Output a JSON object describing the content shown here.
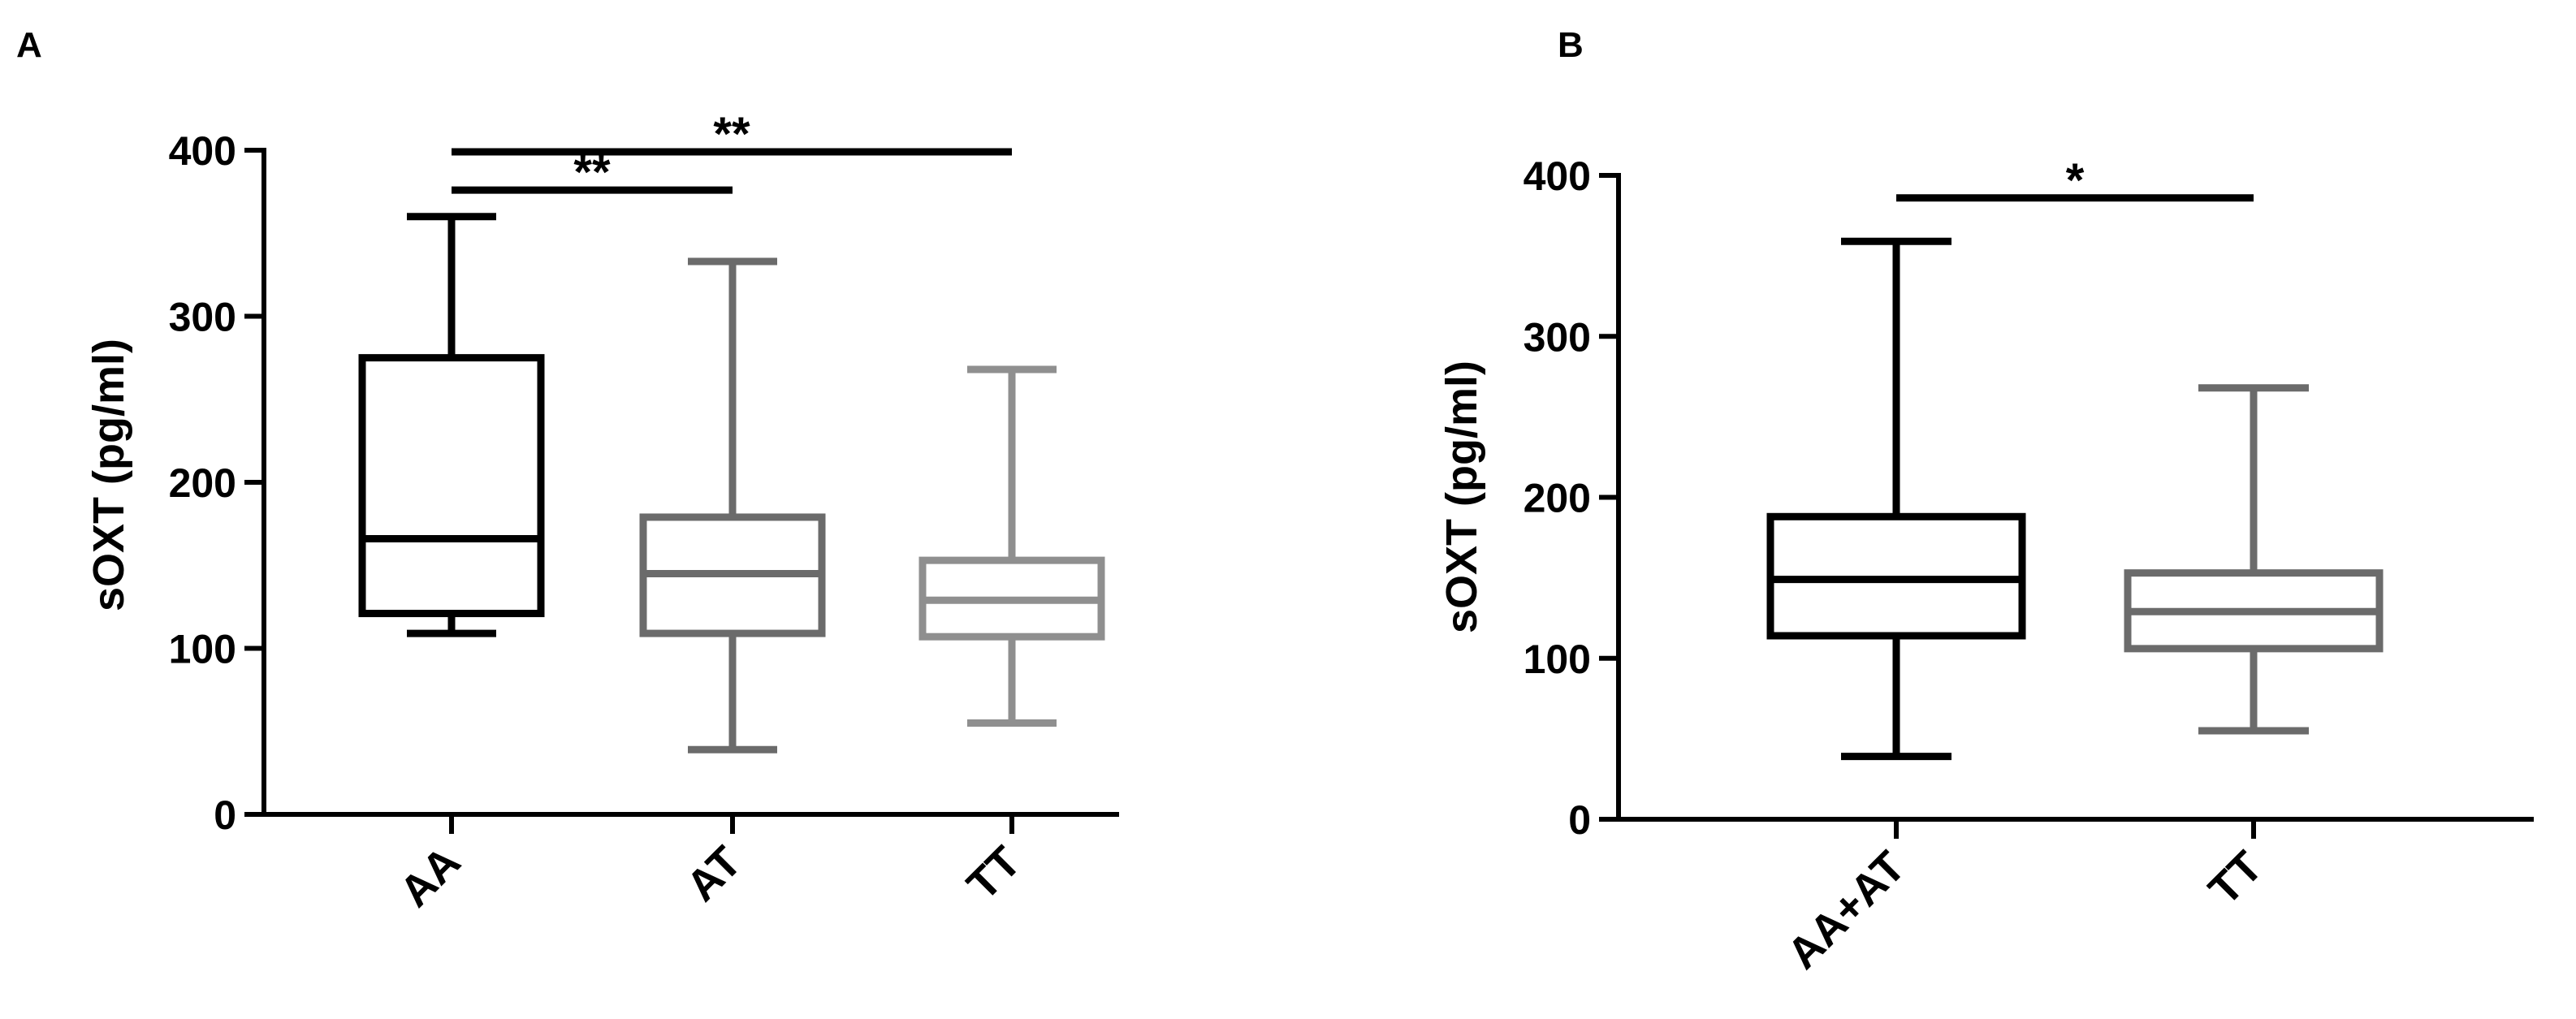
{
  "chart_data": [
    {
      "panel_label": "A",
      "type": "box",
      "ylabel": "sOXT (pg/ml)",
      "ylim": [
        0,
        400
      ],
      "yticks": [
        0,
        100,
        200,
        300,
        400
      ],
      "categories": [
        "AA",
        "AT",
        "TT"
      ],
      "colors": [
        "#000000",
        "#6b6b6b",
        "#8f8f8f"
      ],
      "boxes": [
        {
          "category": "AA",
          "min": 109,
          "q1": 121,
          "median": 166,
          "q3": 275,
          "max": 360
        },
        {
          "category": "AT",
          "min": 39,
          "q1": 109,
          "median": 145,
          "q3": 179,
          "max": 333
        },
        {
          "category": "TT",
          "min": 55,
          "q1": 107,
          "median": 129,
          "q3": 153,
          "max": 268
        }
      ],
      "significance": [
        {
          "from": "AA",
          "to": "TT",
          "level": 399,
          "label": "**"
        },
        {
          "from": "AA",
          "to": "AT",
          "level": 376,
          "label": "**"
        }
      ]
    },
    {
      "panel_label": "B",
      "type": "box",
      "ylabel": "sOXT (pg/ml)",
      "ylim": [
        0,
        400
      ],
      "yticks": [
        0,
        100,
        200,
        300,
        400
      ],
      "categories": [
        "AA+AT",
        "TT"
      ],
      "colors": [
        "#000000",
        "#6b6b6b"
      ],
      "boxes": [
        {
          "category": "AA+AT",
          "min": 39,
          "q1": 114,
          "median": 149,
          "q3": 188,
          "max": 359
        },
        {
          "category": "TT",
          "min": 55,
          "q1": 106,
          "median": 129,
          "q3": 153,
          "max": 268
        }
      ],
      "significance": [
        {
          "from": "AA+AT",
          "to": "TT",
          "level": 386,
          "label": "*"
        }
      ]
    }
  ]
}
